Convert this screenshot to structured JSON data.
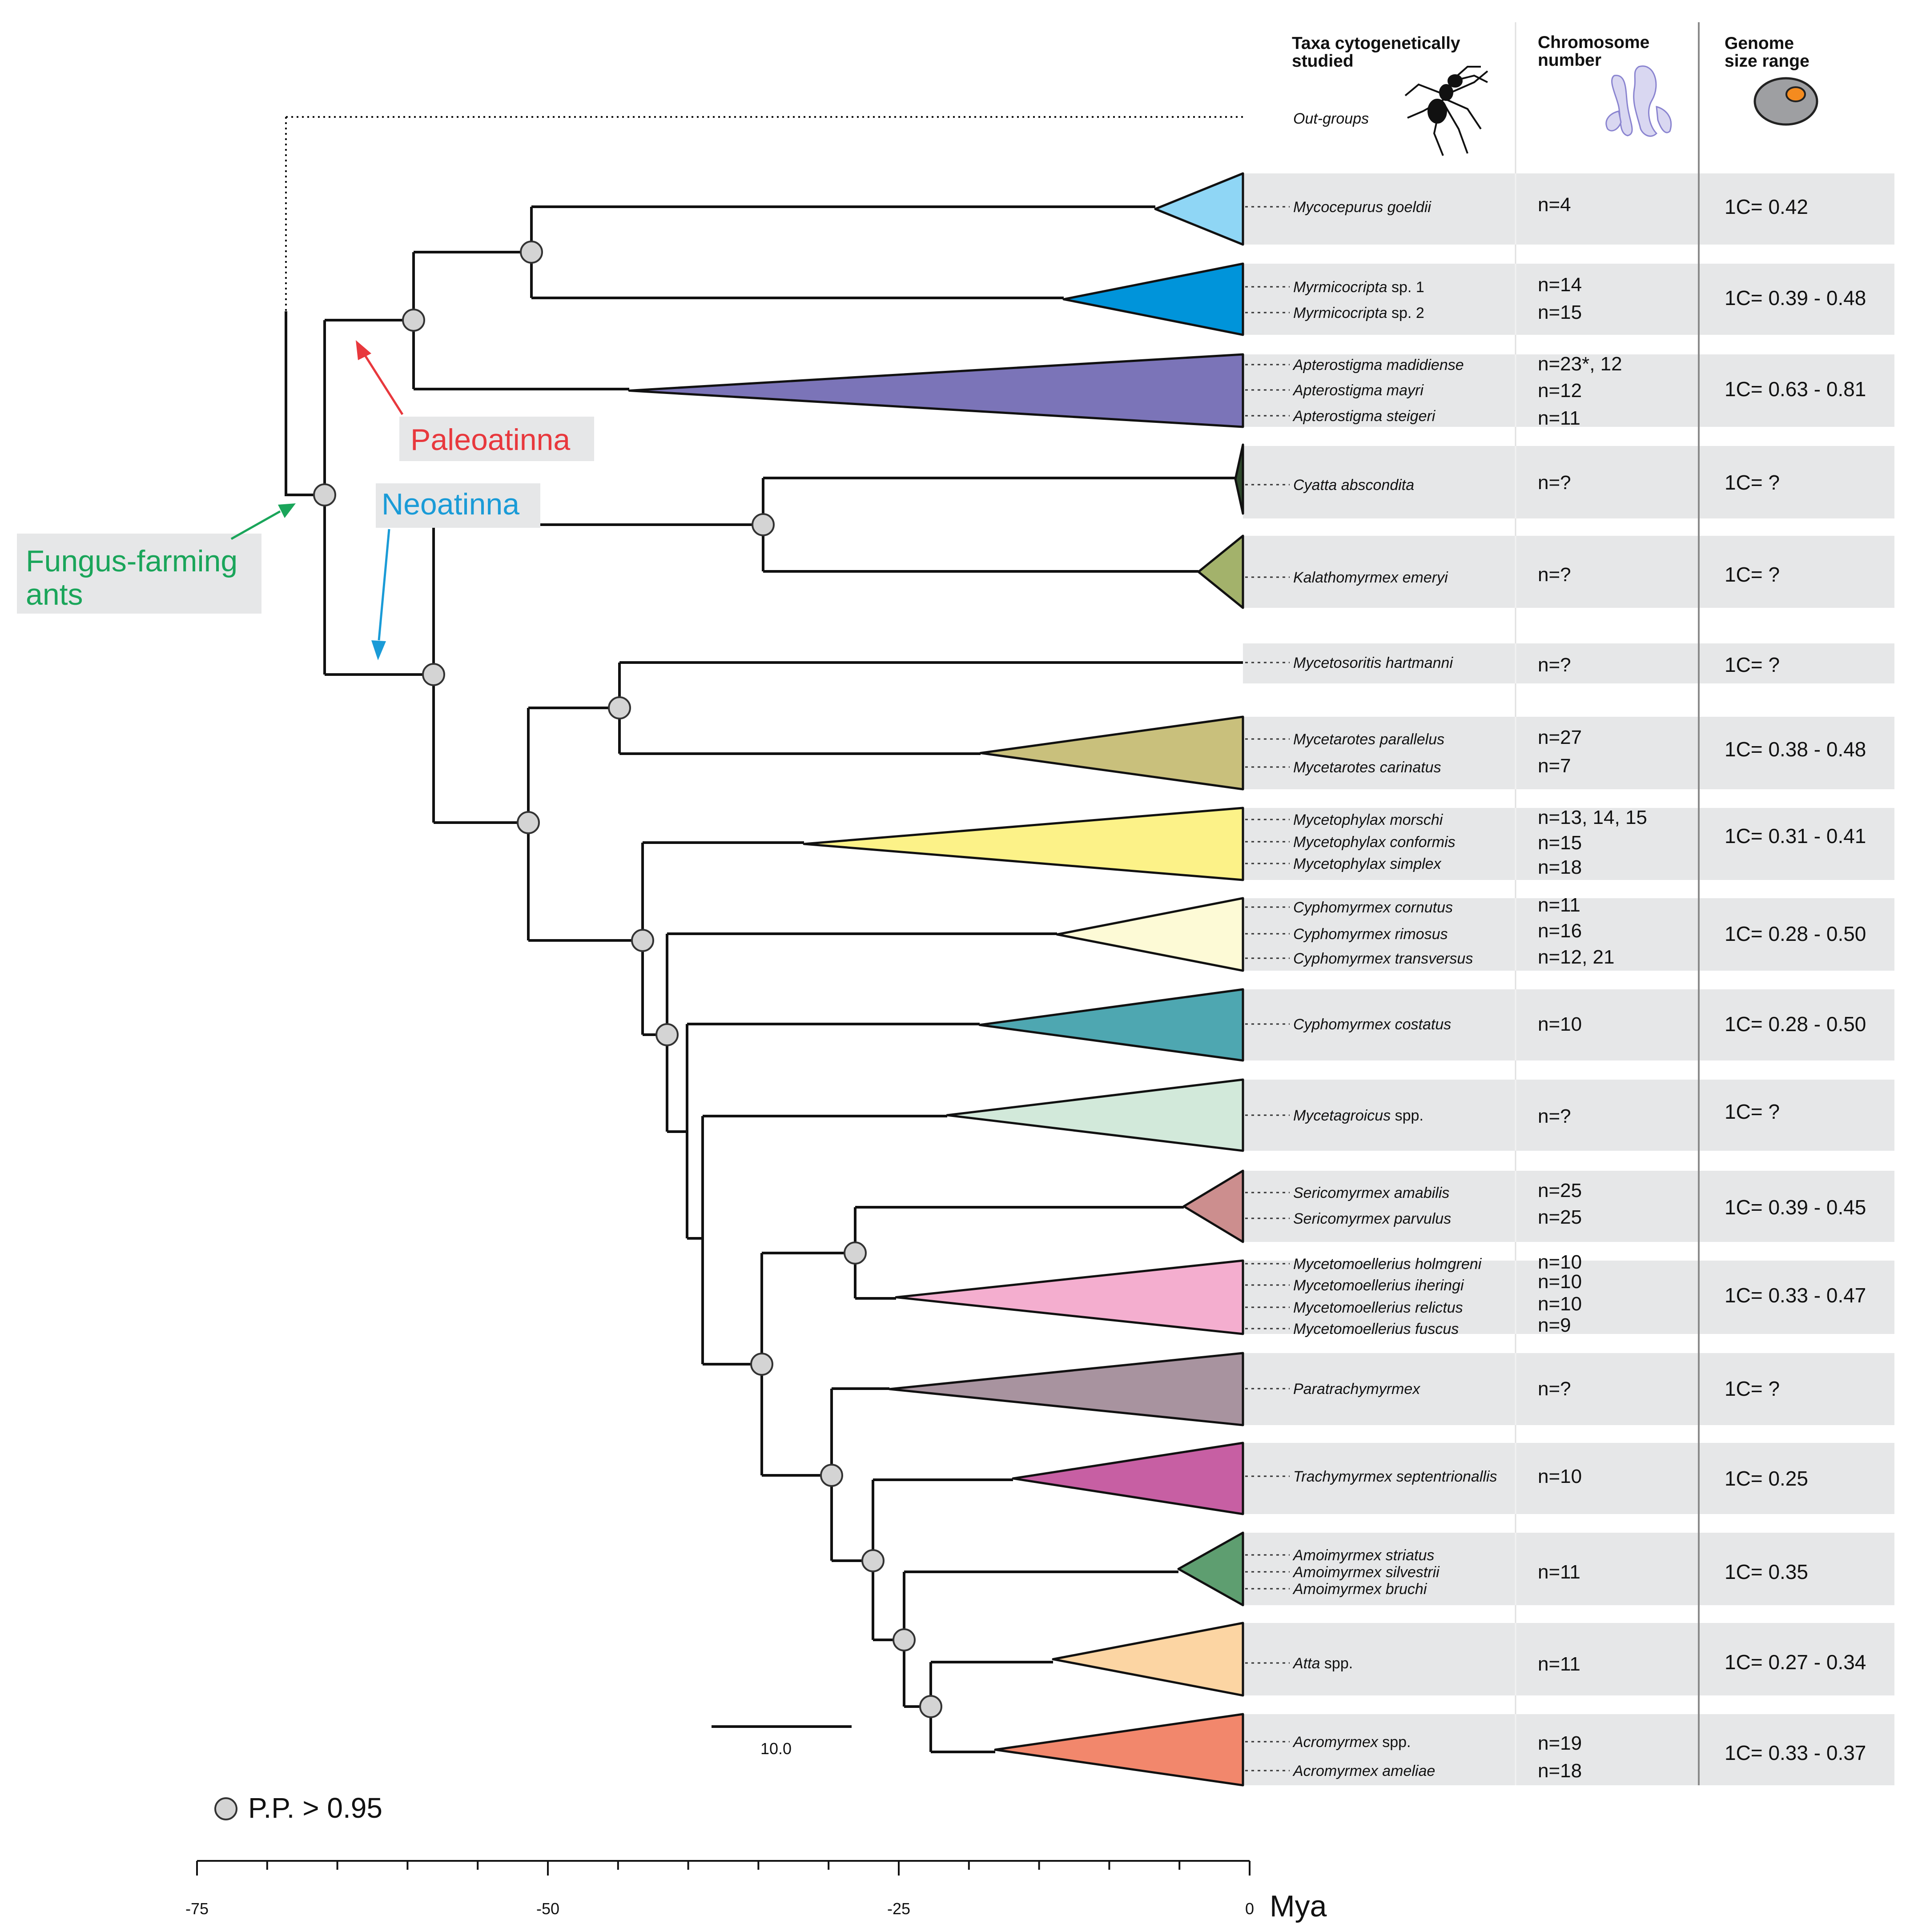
{
  "headers": {
    "taxa": [
      "Taxa cytogenetically",
      "studied"
    ],
    "chromosome": [
      "Chromosome",
      "number"
    ],
    "genome": [
      "Genome",
      "size range"
    ]
  },
  "outgroup_label": "Out-groups",
  "labels": {
    "paleoatinna": "Paleoatinna",
    "neoatinna": "Neoatinna",
    "fungus": [
      "Fungus-farming",
      "ants"
    ]
  },
  "legend_text": "P.P. > 0.95",
  "scale_bar_label": "10.0",
  "axis": {
    "unit": "Mya",
    "ticks": [
      {
        "value": -75,
        "label": "-75"
      },
      {
        "value": -50,
        "label": "-50"
      },
      {
        "value": -25,
        "label": "-25"
      },
      {
        "value": 0,
        "label": "0"
      }
    ]
  },
  "colors": {
    "paleo_label": "#e8383d",
    "neo_label": "#1a9bd7",
    "fungus_label": "#1aa55a",
    "label_bg": "#e6e7e8"
  },
  "clades": [
    {
      "color": "#8fd6f5",
      "taxa": [
        {
          "prefix": "",
          "italic": "Mycocepurus goeldii",
          "suffix": ""
        }
      ],
      "chromosomes": [
        "n=4"
      ],
      "genome": "1C= 0.42"
    },
    {
      "color": "#0094da",
      "taxa": [
        {
          "prefix": "",
          "italic": "Myrmicocripta",
          "suffix": " sp. 1"
        },
        {
          "prefix": "",
          "italic": "Myrmicocripta",
          "suffix": " sp. 2"
        }
      ],
      "chromosomes": [
        "n=14",
        "n=15"
      ],
      "genome": "1C= 0.39 - 0.48"
    },
    {
      "color": "#7b74b8",
      "taxa": [
        {
          "prefix": "",
          "italic": "Apterostigma madidiense",
          "suffix": ""
        },
        {
          "prefix": "",
          "italic": "Apterostigma mayri",
          "suffix": ""
        },
        {
          "prefix": "",
          "italic": "Apterostigma steigeri",
          "suffix": ""
        }
      ],
      "chromosomes": [
        "n=23*, 12",
        "n=12",
        "n=11"
      ],
      "genome": "1C= 0.63 - 0.81"
    },
    {
      "color": "#2f4a2d",
      "taxa": [
        {
          "prefix": "",
          "italic": "Cyatta abscondita",
          "suffix": ""
        }
      ],
      "chromosomes": [
        "n=?"
      ],
      "genome": "1C= ?"
    },
    {
      "color": "#a3b26b",
      "taxa": [
        {
          "prefix": "",
          "italic": "Kalathomyrmex emeryi",
          "suffix": ""
        }
      ],
      "chromosomes": [
        "n=?"
      ],
      "genome": "1C= ?"
    },
    {
      "color": "#ffffff",
      "taxa": [
        {
          "prefix": "",
          "italic": "Mycetosoritis hartmanni",
          "suffix": ""
        }
      ],
      "chromosomes": [
        "n=?"
      ],
      "genome": "1C= ?"
    },
    {
      "color": "#c9c07c",
      "taxa": [
        {
          "prefix": "",
          "italic": "Mycetarotes parallelus",
          "suffix": ""
        },
        {
          "prefix": "",
          "italic": "Mycetarotes carinatus",
          "suffix": ""
        }
      ],
      "chromosomes": [
        "n=27",
        "n=7"
      ],
      "genome": "1C= 0.38 - 0.48"
    },
    {
      "color": "#fcf288",
      "taxa": [
        {
          "prefix": "",
          "italic": "Mycetophylax morschi",
          "suffix": ""
        },
        {
          "prefix": "",
          "italic": "Mycetophylax conformis",
          "suffix": ""
        },
        {
          "prefix": "",
          "italic": "Mycetophylax simplex",
          "suffix": ""
        }
      ],
      "chromosomes": [
        "n=13, 14, 15",
        "n=15",
        "n=18"
      ],
      "genome": "1C= 0.31 - 0.41"
    },
    {
      "color": "#fdfad6",
      "taxa": [
        {
          "prefix": "",
          "italic": "Cyphomyrmex cornutus",
          "suffix": ""
        },
        {
          "prefix": "",
          "italic": "Cyphomyrmex rimosus",
          "suffix": ""
        },
        {
          "prefix": "",
          "italic": "Cyphomyrmex transversus",
          "suffix": ""
        }
      ],
      "chromosomes": [
        "n=11",
        "n=16",
        "n=12, 21"
      ],
      "genome": "1C= 0.28 - 0.50"
    },
    {
      "color": "#4ea7b1",
      "taxa": [
        {
          "prefix": "",
          "italic": "Cyphomyrmex costatus",
          "suffix": ""
        }
      ],
      "chromosomes": [
        "n=10"
      ],
      "genome": "1C= 0.28 - 0.50"
    },
    {
      "color": "#d2e9da",
      "taxa": [
        {
          "prefix": "",
          "italic": "Mycetagroicus",
          "suffix": " spp."
        }
      ],
      "chromosomes": [
        "n=?"
      ],
      "genome": "1C= ?"
    },
    {
      "color": "#cc8e8e",
      "taxa": [
        {
          "prefix": "",
          "italic": "Sericomyrmex amabilis",
          "suffix": ""
        },
        {
          "prefix": "",
          "italic": "Sericomyrmex parvulus",
          "suffix": ""
        }
      ],
      "chromosomes": [
        "n=25",
        "n=25"
      ],
      "genome": "1C= 0.39 - 0.45"
    },
    {
      "color": "#f4aecf",
      "taxa": [
        {
          "prefix": "",
          "italic": "Mycetomoellerius holmgreni",
          "suffix": ""
        },
        {
          "prefix": "",
          "italic": "Mycetomoellerius iheringi",
          "suffix": ""
        },
        {
          "prefix": "",
          "italic": "Mycetomoellerius relictus",
          "suffix": ""
        },
        {
          "prefix": "",
          "italic": "Mycetomoellerius fuscus",
          "suffix": ""
        }
      ],
      "chromosomes": [
        "n=10",
        "n=10",
        "n=10",
        "n=9"
      ],
      "genome": "1C= 0.33 - 0.47"
    },
    {
      "color": "#a8939f",
      "taxa": [
        {
          "prefix": "",
          "italic": "Paratrachymyrmex",
          "suffix": ""
        }
      ],
      "chromosomes": [
        "n=?"
      ],
      "genome": "1C= ?"
    },
    {
      "color": "#c75fa3",
      "taxa": [
        {
          "prefix": "",
          "italic": "Trachymyrmex septentrionallis",
          "suffix": ""
        }
      ],
      "chromosomes": [
        "n=10"
      ],
      "genome": "1C= 0.25"
    },
    {
      "color": "#5e9e70",
      "taxa": [
        {
          "prefix": "",
          "italic": "Amoimyrmex striatus",
          "suffix": ""
        },
        {
          "prefix": "",
          "italic": "Amoimyrmex silvestrii",
          "suffix": ""
        },
        {
          "prefix": "",
          "italic": "Amoimyrmex bruchi",
          "suffix": ""
        }
      ],
      "chromosomes": [
        "n=11"
      ],
      "genome": "1C= 0.35"
    },
    {
      "color": "#fcd5a3",
      "taxa": [
        {
          "prefix": "",
          "italic": "Atta",
          "suffix": " spp."
        }
      ],
      "chromosomes": [
        "n=11"
      ],
      "genome": "1C= 0.27 - 0.34"
    },
    {
      "color": "#f2876c",
      "taxa": [
        {
          "prefix": "",
          "italic": "Acromyrmex",
          "suffix": " spp."
        },
        {
          "prefix": "",
          "italic": "Acromyrmex ameliae",
          "suffix": ""
        }
      ],
      "chromosomes": [
        "n=19",
        "n=18"
      ],
      "genome": "1C= 0.33 - 0.37"
    }
  ]
}
